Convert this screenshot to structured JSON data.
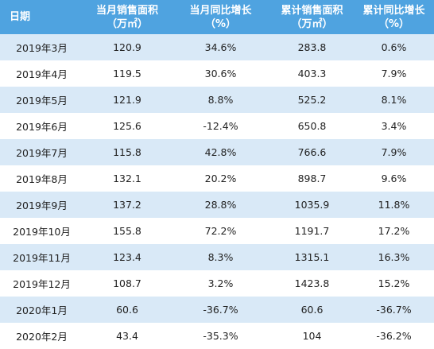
{
  "table": {
    "header": [
      [
        "日期"
      ],
      [
        "当月销售面积",
        "（万㎡）"
      ],
      [
        "当月同比增长",
        "（%）"
      ],
      [
        "累计销售面积",
        "（万㎡）"
      ],
      [
        "累计同比增长",
        "（%）"
      ]
    ],
    "rows": [
      [
        "2019年3月",
        "120.9",
        "34.6%",
        "283.8",
        "0.6%"
      ],
      [
        "2019年4月",
        "119.5",
        "30.6%",
        "403.3",
        "7.9%"
      ],
      [
        "2019年5月",
        "121.9",
        "8.8%",
        "525.2",
        "8.1%"
      ],
      [
        "2019年6月",
        "125.6",
        "-12.4%",
        "650.8",
        "3.4%"
      ],
      [
        "2019年7月",
        "115.8",
        "42.8%",
        "766.6",
        "7.9%"
      ],
      [
        "2019年8月",
        "132.1",
        "20.2%",
        "898.7",
        "9.6%"
      ],
      [
        "2019年9月",
        "137.2",
        "28.8%",
        "1035.9",
        "11.8%"
      ],
      [
        "2019年10月",
        "155.8",
        "72.2%",
        "1191.7",
        "17.2%"
      ],
      [
        "2019年11月",
        "123.4",
        "8.3%",
        "1315.1",
        "16.3%"
      ],
      [
        "2019年12月",
        "108.7",
        "3.2%",
        "1423.8",
        "15.2%"
      ],
      [
        "2020年1月",
        "60.6",
        "-36.7%",
        "60.6",
        "-36.7%"
      ],
      [
        "2020年2月",
        "43.4",
        "-35.3%",
        "104",
        "-36.2%"
      ]
    ]
  }
}
